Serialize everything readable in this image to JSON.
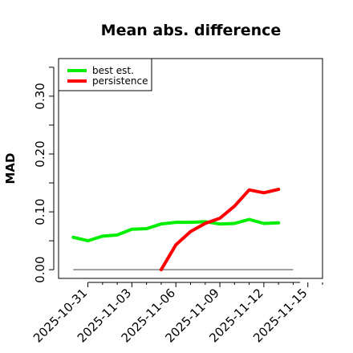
{
  "chart_data": {
    "type": "line",
    "title": "Mean abs. difference",
    "xlabel": "",
    "ylabel": "MAD",
    "x_ticks": [
      "2025-10-31",
      "2025-11-03",
      "2025-11-06",
      "2025-11-09",
      "2025-11-12",
      "2025-11-15"
    ],
    "y_ticks": [
      "0.00",
      "0.10",
      "0.20",
      "0.30"
    ],
    "xlim": [
      "2025-10-29",
      "2025-11-16"
    ],
    "ylim": [
      -0.015,
      0.365
    ],
    "grid": false,
    "legend_position": "top-left",
    "reference_line": {
      "y": 0.0,
      "x_start": "2025-10-30",
      "x_end": "2025-11-14",
      "color": "#808080"
    },
    "series": [
      {
        "name": "best est.",
        "color": "#00ee00",
        "points": [
          [
            "2025-10-30",
            0.056
          ],
          [
            "2025-10-31",
            0.05
          ],
          [
            "2025-11-01",
            0.058
          ],
          [
            "2025-11-02",
            0.06
          ],
          [
            "2025-11-03",
            0.07
          ],
          [
            "2025-11-04",
            0.071
          ],
          [
            "2025-11-05",
            0.079
          ],
          [
            "2025-11-06",
            0.082
          ],
          [
            "2025-11-07",
            0.082
          ],
          [
            "2025-11-08",
            0.083
          ],
          [
            "2025-11-09",
            0.079
          ],
          [
            "2025-11-10",
            0.08
          ],
          [
            "2025-11-11",
            0.087
          ],
          [
            "2025-11-12",
            0.08
          ],
          [
            "2025-11-13",
            0.081
          ]
        ]
      },
      {
        "name": "persistence",
        "color": "#ff0000",
        "points": [
          [
            "2025-11-05",
            0.0
          ],
          [
            "2025-11-06",
            0.043
          ],
          [
            "2025-11-07",
            0.066
          ],
          [
            "2025-11-08",
            0.08
          ],
          [
            "2025-11-09",
            0.089
          ],
          [
            "2025-11-10",
            0.11
          ],
          [
            "2025-11-11",
            0.138
          ],
          [
            "2025-11-12",
            0.133
          ],
          [
            "2025-11-13",
            0.139
          ]
        ]
      }
    ]
  }
}
